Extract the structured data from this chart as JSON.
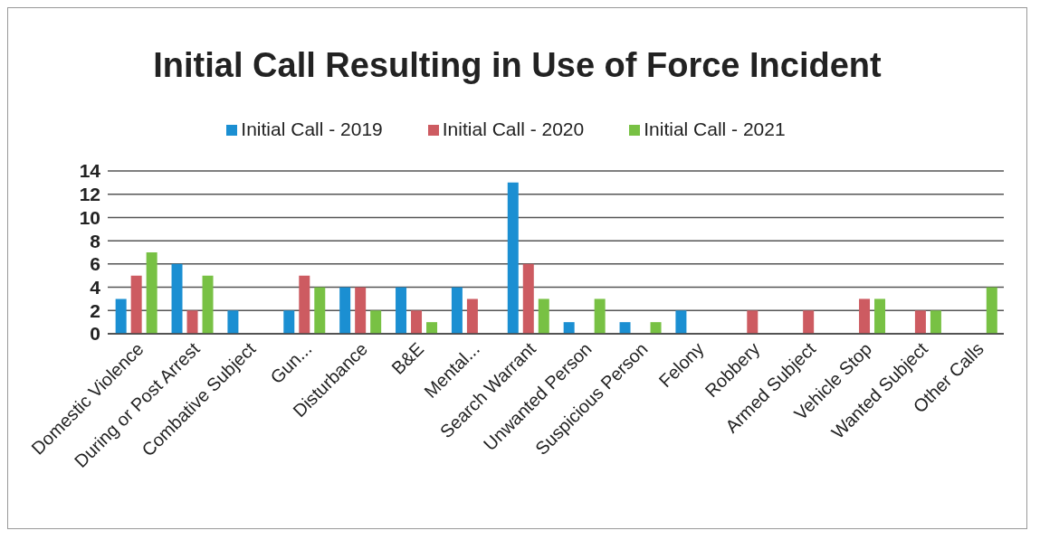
{
  "chart_data": {
    "type": "bar",
    "title": "Initial Call Resulting in Use of Force Incident",
    "categories": [
      "Domestic Violence",
      "During or Post Arrest",
      "Combative Subject",
      "Gun...",
      "Disturbance",
      "B&E",
      "Mental...",
      "Search Warrant",
      "Unwanted Person",
      "Suspicious Person",
      "Felony",
      "Robbery",
      "Armed Subject",
      "Vehicle Stop",
      "Wanted Subject",
      "Other Calls"
    ],
    "series": [
      {
        "name": "Initial Call - 2019",
        "color": "#1b8fd2",
        "values": [
          3,
          6,
          2,
          2,
          4,
          4,
          4,
          13,
          1,
          1,
          2,
          0,
          0,
          0,
          0,
          0
        ]
      },
      {
        "name": "Initial Call - 2020",
        "color": "#cd5b61",
        "values": [
          5,
          2,
          0,
          5,
          4,
          2,
          3,
          6,
          0,
          0,
          0,
          2,
          2,
          3,
          2,
          0
        ]
      },
      {
        "name": "Initial Call - 2021",
        "color": "#78c144",
        "values": [
          7,
          5,
          0,
          4,
          2,
          1,
          0,
          3,
          3,
          1,
          0,
          0,
          0,
          3,
          2,
          4
        ]
      }
    ],
    "ylim": [
      0,
      14
    ],
    "yticks": [
      0,
      2,
      4,
      6,
      8,
      10,
      12,
      14
    ],
    "grid": "y",
    "legend": "top"
  }
}
